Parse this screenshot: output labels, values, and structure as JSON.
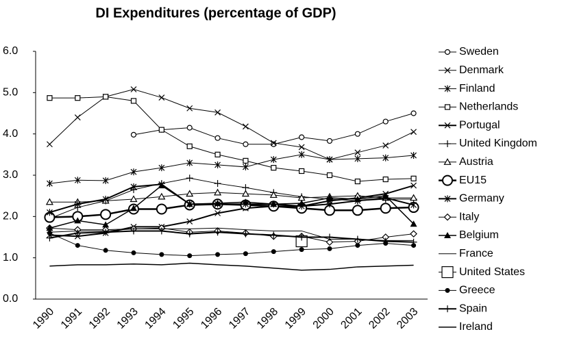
{
  "chart_data": {
    "type": "line",
    "title": "DI Expenditures (percentage of GDP)",
    "categories": [
      "1990",
      "1991",
      "1992",
      "1993",
      "1994",
      "1995",
      "1996",
      "1997",
      "1998",
      "1999",
      "2000",
      "2001",
      "2002",
      "2003"
    ],
    "ylim": [
      0,
      6
    ],
    "yticks": [
      {
        "value": 0,
        "label": "0.0"
      },
      {
        "value": 1,
        "label": "1.0"
      },
      {
        "value": 2,
        "label": "2.0"
      },
      {
        "value": 3,
        "label": "3.0"
      },
      {
        "value": 4,
        "label": "4.0"
      },
      {
        "value": 5,
        "label": "5.0"
      },
      {
        "value": 6,
        "label": "6.0"
      }
    ],
    "grid": false,
    "legend": "right",
    "series": [
      {
        "name": "Sweden",
        "color": "#000000",
        "marker": "circle",
        "width": 1,
        "values": [
          null,
          null,
          null,
          3.98,
          4.1,
          4.15,
          3.9,
          3.75,
          3.75,
          3.92,
          3.83,
          4.0,
          4.3,
          4.5
        ]
      },
      {
        "name": "Denmark",
        "color": "#000000",
        "marker": "x",
        "width": 1,
        "values": [
          3.75,
          4.4,
          4.9,
          5.08,
          4.88,
          4.62,
          4.52,
          4.18,
          3.78,
          3.68,
          3.38,
          3.55,
          3.72,
          4.05
        ]
      },
      {
        "name": "Finland",
        "color": "#000000",
        "marker": "asterisk",
        "width": 1,
        "values": [
          2.8,
          2.88,
          2.87,
          3.08,
          3.18,
          3.3,
          3.25,
          3.2,
          3.38,
          3.5,
          3.38,
          3.4,
          3.42,
          3.48
        ]
      },
      {
        "name": "Netherlands",
        "color": "#000000",
        "marker": "square",
        "width": 1,
        "values": [
          4.87,
          4.87,
          4.9,
          4.8,
          4.1,
          3.7,
          3.5,
          3.35,
          3.18,
          3.1,
          3.0,
          2.85,
          2.9,
          2.92
        ]
      },
      {
        "name": "Portugal",
        "color": "#000000",
        "marker": "x",
        "width": 2,
        "values": [
          1.55,
          1.52,
          1.6,
          1.75,
          1.75,
          1.88,
          2.08,
          2.2,
          2.25,
          2.25,
          2.38,
          2.45,
          2.55,
          2.75
        ]
      },
      {
        "name": "United Kingdom",
        "color": "#000000",
        "marker": "plus",
        "width": 1,
        "values": [
          1.95,
          2.22,
          2.38,
          2.65,
          2.8,
          2.93,
          2.8,
          2.7,
          2.58,
          2.48,
          2.42,
          2.38,
          2.42,
          2.42
        ]
      },
      {
        "name": "Austria",
        "color": "#000000",
        "marker": "triangle",
        "width": 1,
        "values": [
          2.35,
          2.35,
          2.38,
          2.42,
          2.48,
          2.55,
          2.58,
          2.55,
          2.52,
          2.45,
          2.48,
          2.5,
          2.45,
          2.45
        ]
      },
      {
        "name": "EU15",
        "color": "#000000",
        "marker": "bigcircle",
        "width": 2.5,
        "values": [
          1.98,
          2.0,
          2.05,
          2.18,
          2.18,
          2.28,
          2.3,
          2.28,
          2.25,
          2.2,
          2.15,
          2.15,
          2.2,
          2.22
        ]
      },
      {
        "name": "Germany",
        "color": "#000000",
        "marker": "asterisk",
        "width": 2,
        "values": [
          2.1,
          2.3,
          2.42,
          2.72,
          2.78,
          2.3,
          2.3,
          2.3,
          2.3,
          2.25,
          2.3,
          2.38,
          2.45,
          2.28
        ]
      },
      {
        "name": "Italy",
        "color": "#000000",
        "marker": "diamond",
        "width": 1,
        "values": [
          1.72,
          1.68,
          1.68,
          1.7,
          1.72,
          1.62,
          1.65,
          1.6,
          1.52,
          1.52,
          1.38,
          1.4,
          1.5,
          1.58
        ]
      },
      {
        "name": "Belgium",
        "color": "#000000",
        "marker": "filledtriangle",
        "width": 1.5,
        "values": [
          1.72,
          1.9,
          1.8,
          2.2,
          2.75,
          2.3,
          2.32,
          2.35,
          2.3,
          2.32,
          2.45,
          2.42,
          2.5,
          1.82
        ]
      },
      {
        "name": "France",
        "color": "#000000",
        "marker": "none",
        "width": 1,
        "values": [
          1.62,
          1.65,
          1.65,
          1.7,
          1.7,
          1.7,
          1.72,
          1.68,
          1.65,
          1.65,
          1.45,
          1.45,
          1.42,
          1.42
        ]
      },
      {
        "name": "United States",
        "color": "#000000",
        "marker": "bigsquare",
        "width": 1,
        "values": [
          null,
          null,
          null,
          null,
          null,
          null,
          null,
          null,
          null,
          1.4,
          null,
          null,
          null,
          null
        ]
      },
      {
        "name": "Greece",
        "color": "#000000",
        "marker": "dot",
        "width": 1,
        "values": [
          1.6,
          1.3,
          1.18,
          1.12,
          1.08,
          1.05,
          1.08,
          1.1,
          1.15,
          1.2,
          1.22,
          1.3,
          1.35,
          1.3
        ]
      },
      {
        "name": "Spain",
        "color": "#000000",
        "marker": "plus",
        "width": 2,
        "values": [
          1.48,
          1.6,
          1.62,
          1.65,
          1.65,
          1.58,
          1.62,
          1.58,
          1.55,
          1.5,
          1.5,
          1.45,
          1.4,
          1.38
        ]
      },
      {
        "name": "Ireland",
        "color": "#000000",
        "marker": "none",
        "width": 1.5,
        "values": [
          0.8,
          0.83,
          0.83,
          0.85,
          0.83,
          0.87,
          0.83,
          0.8,
          0.75,
          0.7,
          0.72,
          0.78,
          0.8,
          0.82
        ]
      }
    ]
  }
}
